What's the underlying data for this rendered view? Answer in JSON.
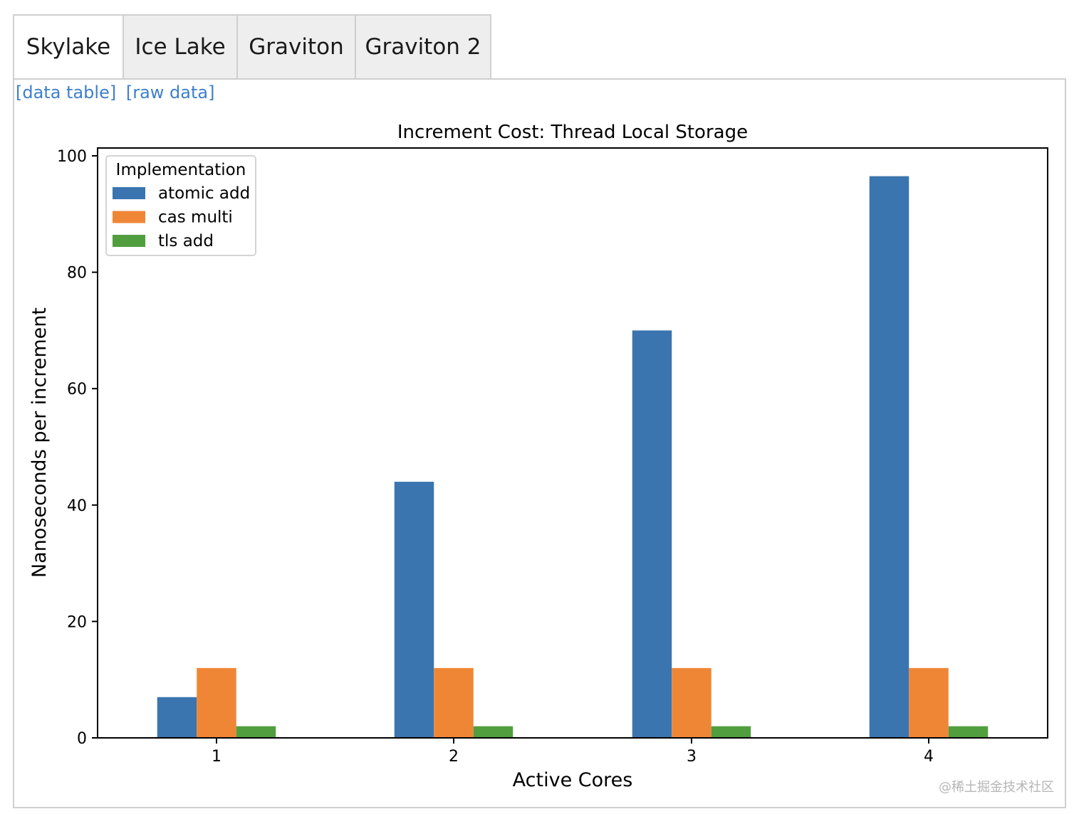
{
  "tabs": [
    {
      "label": "Skylake",
      "active": true
    },
    {
      "label": "Ice Lake",
      "active": false
    },
    {
      "label": "Graviton",
      "active": false
    },
    {
      "label": "Graviton 2",
      "active": false
    }
  ],
  "links": {
    "data_table": "[data table]",
    "raw_data": "[raw data]"
  },
  "watermark": "@稀土掘金技术社区",
  "chart_data": {
    "type": "bar",
    "title": "Increment Cost: Thread Local Storage",
    "xlabel": "Active Cores",
    "ylabel": "Nanoseconds per increment",
    "categories": [
      "1",
      "2",
      "3",
      "4"
    ],
    "ylim": [
      0,
      100
    ],
    "yticks": [
      0,
      20,
      40,
      60,
      80,
      100
    ],
    "legend": {
      "title": "Implementation",
      "position": "top-left"
    },
    "series": [
      {
        "name": "atomic add",
        "color": "#3a75af",
        "values": [
          7,
          44,
          70,
          96.5
        ]
      },
      {
        "name": "cas multi",
        "color": "#ef8636",
        "values": [
          12,
          12,
          12,
          12
        ]
      },
      {
        "name": "tls add",
        "color": "#519e3e",
        "values": [
          2,
          2,
          2,
          2
        ]
      }
    ],
    "grid": false
  }
}
